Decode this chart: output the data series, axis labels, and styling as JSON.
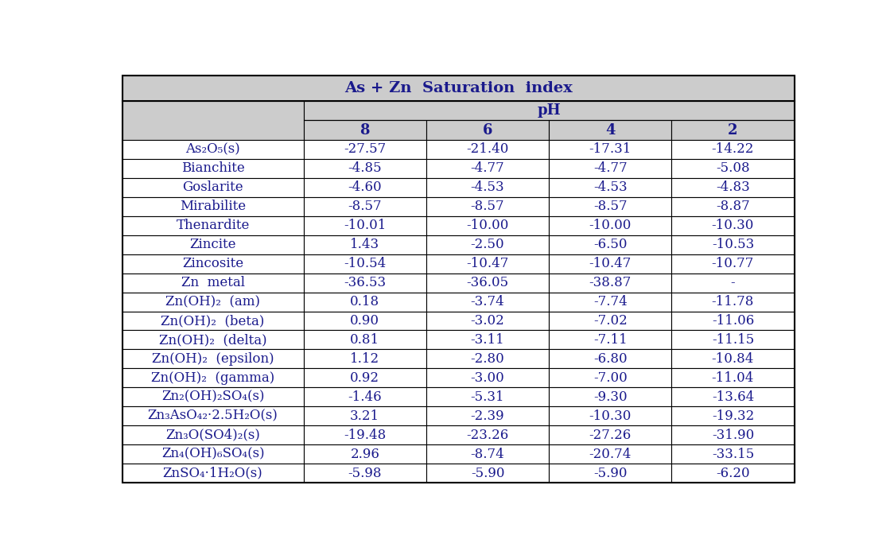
{
  "title": "As + Zn  Saturation  index",
  "subtitle": "pH",
  "col_headers": [
    "8",
    "6",
    "4",
    "2"
  ],
  "row_labels": [
    "As₂O₅(s)",
    "Bianchite",
    "Goslarite",
    "Mirabilite",
    "Thenardite",
    "Zincite",
    "Zincosite",
    "Zn  metal",
    "Zn(OH)₂  (am)",
    "Zn(OH)₂  (beta)",
    "Zn(OH)₂  (delta)",
    "Zn(OH)₂  (epsilon)",
    "Zn(OH)₂  (gamma)",
    "Zn₂(OH)₂SO₄(s)",
    "Zn₃AsO₄₂·2.5H₂O(s)",
    "Zn₃O(SO4)₂(s)",
    "Zn₄(OH)₆SO₄(s)",
    "ZnSO₄·1H₂O(s)"
  ],
  "data": [
    [
      "-27.57",
      "-21.40",
      "-17.31",
      "-14.22"
    ],
    [
      "-4.85",
      "-4.77",
      "-4.77",
      "-5.08"
    ],
    [
      "-4.60",
      "-4.53",
      "-4.53",
      "-4.83"
    ],
    [
      "-8.57",
      "-8.57",
      "-8.57",
      "-8.87"
    ],
    [
      "-10.01",
      "-10.00",
      "-10.00",
      "-10.30"
    ],
    [
      "1.43",
      "-2.50",
      "-6.50",
      "-10.53"
    ],
    [
      "-10.54",
      "-10.47",
      "-10.47",
      "-10.77"
    ],
    [
      "-36.53",
      "-36.05",
      "-38.87",
      "-"
    ],
    [
      "0.18",
      "-3.74",
      "-7.74",
      "-11.78"
    ],
    [
      "0.90",
      "-3.02",
      "-7.02",
      "-11.06"
    ],
    [
      "0.81",
      "-3.11",
      "-7.11",
      "-11.15"
    ],
    [
      "1.12",
      "-2.80",
      "-6.80",
      "-10.84"
    ],
    [
      "0.92",
      "-3.00",
      "-7.00",
      "-11.04"
    ],
    [
      "-1.46",
      "-5.31",
      "-9.30",
      "-13.64"
    ],
    [
      "3.21",
      "-2.39",
      "-10.30",
      "-19.32"
    ],
    [
      "-19.48",
      "-23.26",
      "-27.26",
      "-31.90"
    ],
    [
      "2.96",
      "-8.74",
      "-20.74",
      "-33.15"
    ],
    [
      "-5.98",
      "-5.90",
      "-5.90",
      "-6.20"
    ]
  ],
  "header_bg": "#cccccc",
  "cell_bg": "#ffffff",
  "text_color": "#1a1a8c",
  "border_color": "#000000",
  "title_fontsize": 14,
  "header_fontsize": 13,
  "cell_fontsize": 12,
  "fig_width": 11.24,
  "fig_height": 6.93,
  "dpi": 100
}
